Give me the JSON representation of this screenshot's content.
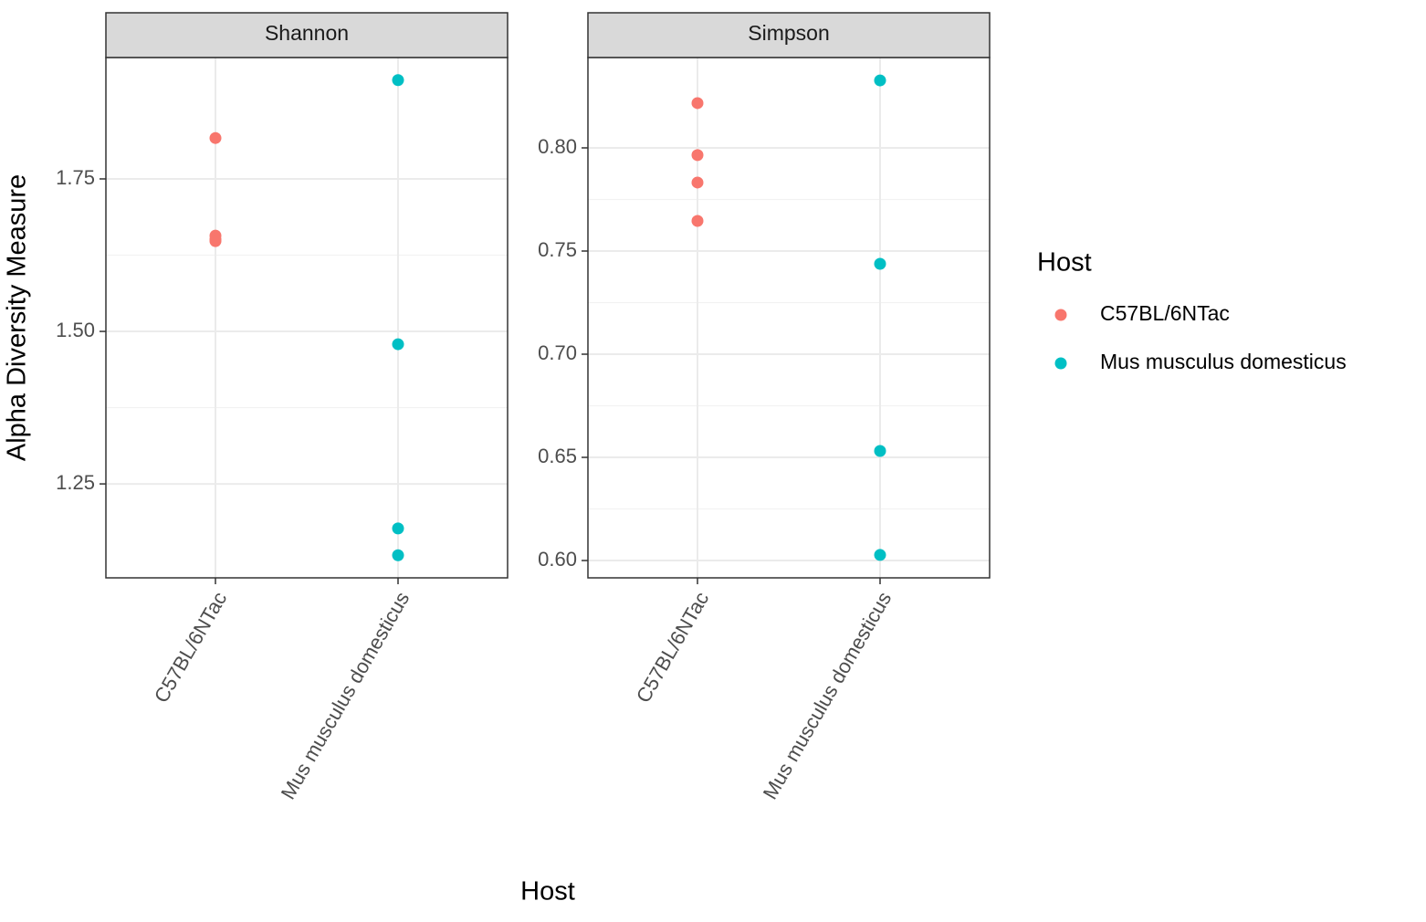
{
  "chart_data": [
    {
      "type": "strip",
      "title": "Shannon",
      "categories": [
        "C57BL/6NTac",
        "Mus musculus domesticus"
      ],
      "series": [
        {
          "name": "C57BL/6NTac",
          "color": "#F8766D",
          "values": [
            1.817,
            1.657,
            1.651,
            1.648
          ]
        },
        {
          "name": "Mus musculus domesticus",
          "color": "#00BFC4",
          "values": [
            1.912,
            1.479,
            1.177,
            1.133
          ]
        }
      ],
      "ylim": [
        1.096,
        1.949
      ],
      "yticks": [
        1.25,
        {
          "value": 1.5,
          "label": "1.50"
        },
        1.75
      ],
      "grid": true
    },
    {
      "type": "strip",
      "title": "Simpson",
      "categories": [
        "C57BL/6NTac",
        "Mus musculus domesticus"
      ],
      "series": [
        {
          "name": "C57BL/6NTac",
          "color": "#F8766D",
          "values": [
            0.8217,
            0.7965,
            0.7832,
            0.7646
          ]
        },
        {
          "name": "Mus musculus domesticus",
          "color": "#00BFC4",
          "values": [
            0.8327,
            0.7438,
            0.6531,
            0.6027
          ]
        }
      ],
      "ylim": [
        0.5916,
        0.8438
      ],
      "yticks": [
        {
          "value": 0.6,
          "label": "0.60"
        },
        0.65,
        {
          "value": 0.7,
          "label": "0.70"
        },
        0.75,
        {
          "value": 0.8,
          "label": "0.80"
        }
      ],
      "grid": true
    }
  ],
  "x_label": "Host",
  "y_label": "Alpha Diversity Measure",
  "legend_title": "Host"
}
